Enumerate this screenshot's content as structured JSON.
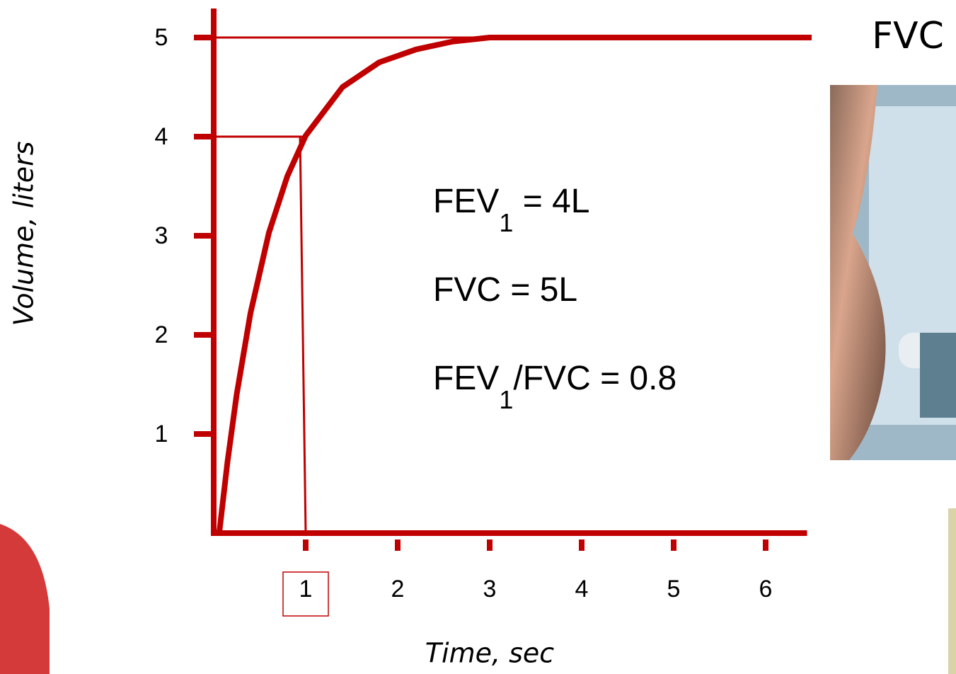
{
  "chart_data": {
    "type": "line",
    "title": "FVC",
    "x_label": "Time, sec",
    "y_label": "Volume, liters",
    "x": [
      0.06,
      0.15,
      0.25,
      0.4,
      0.6,
      0.8,
      1,
      1.4,
      1.8,
      2.2,
      2.6,
      3,
      6.5
    ],
    "values": [
      0,
      0.72,
      1.4,
      2.22,
      3.03,
      3.6,
      4.01,
      4.5,
      4.75,
      4.88,
      4.96,
      5,
      5
    ],
    "color": "#c00000",
    "xlim": [
      0,
      6.45
    ],
    "ylim": [
      0,
      5.3
    ],
    "xticks": [
      1,
      2,
      3,
      4,
      5,
      6
    ],
    "yticks": [
      1,
      2,
      3,
      4,
      5
    ],
    "highlighted_xtick": 1,
    "guides": [
      {
        "x": 1,
        "y": 4,
        "vertical": true
      },
      {
        "x": 3,
        "y": 5,
        "vertical": false
      }
    ],
    "annotations": [
      [
        {
          "text": "FEV"
        },
        {
          "text": "1",
          "sub": true
        },
        {
          "text": " = 4L"
        }
      ],
      [
        {
          "text": "FVC  = 5L"
        }
      ],
      [
        {
          "text": "FEV"
        },
        {
          "text": "1",
          "sub": true
        },
        {
          "text": "/FVC = 0.8"
        }
      ]
    ]
  }
}
